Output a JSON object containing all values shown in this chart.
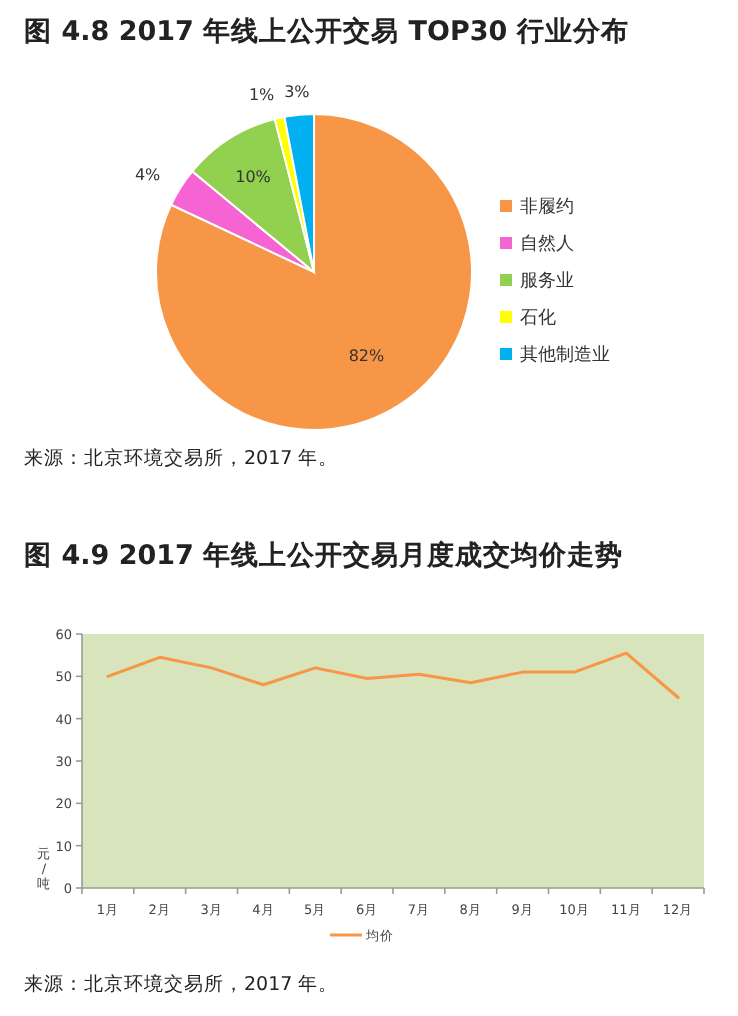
{
  "chart_data": [
    {
      "type": "pie",
      "title": "图 4.8 2017 年线上公开交易 TOP30 行业分布",
      "categories": [
        "非履约",
        "自然人",
        "服务业",
        "石化",
        "其他制造业"
      ],
      "values": [
        82,
        4,
        10,
        1,
        3
      ],
      "colors": [
        "#f79646",
        "#f564d2",
        "#92d050",
        "#ffff00",
        "#00b0f0"
      ],
      "value_labels": [
        "82%",
        "4%",
        "10%",
        "1%",
        "3%"
      ],
      "legend": "right",
      "annotations": [
        "来源：北京环境交易所，2017 年。"
      ]
    },
    {
      "type": "line",
      "title": "图 4.9 2017 年线上公开交易月度成交均价走势",
      "ylabel": "元/吨",
      "categories": [
        "1月",
        "2月",
        "3月",
        "4月",
        "5月",
        "6月",
        "7月",
        "8月",
        "9月",
        "10月",
        "11月",
        "12月"
      ],
      "series": [
        {
          "name": "均价",
          "color": "#f79646",
          "values": [
            50,
            54.5,
            52,
            48,
            52,
            49.5,
            50.5,
            48.5,
            51,
            51,
            55.5,
            45
          ]
        }
      ],
      "ylim": [
        0,
        60
      ],
      "yticks": [
        0,
        10,
        20,
        30,
        40,
        50,
        60
      ],
      "legend": "bottom",
      "annotations": [
        "来源：北京环境交易所，2017 年。"
      ]
    }
  ]
}
